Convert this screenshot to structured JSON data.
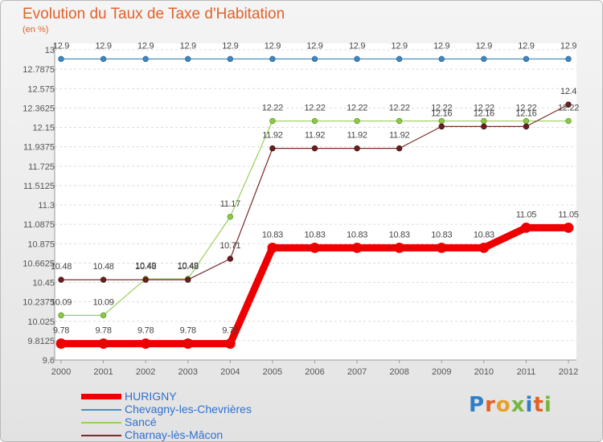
{
  "header": {
    "title": "Evolution du Taux de Taxe d'Habitation",
    "subtitle": "(en %)"
  },
  "logo": {
    "text": "Proxiti",
    "letters": [
      "P",
      "r",
      "o",
      "x",
      "i",
      "t",
      "i"
    ],
    "colors": [
      "#2f7fc8",
      "#e0622b",
      "#e7a12a",
      "#7ab540",
      "#2f7fc8",
      "#e0622b",
      "#7ab540"
    ]
  },
  "chart_data": {
    "type": "line",
    "title": "Evolution du Taux de Taxe d'Habitation",
    "ylabel": "(en %)",
    "x": [
      "2000",
      "2001",
      "2002",
      "2003",
      "2004",
      "2005",
      "2006",
      "2007",
      "2008",
      "2009",
      "2010",
      "2011",
      "2012"
    ],
    "ylim": [
      9.6,
      13
    ],
    "y_ticks": [
      "13",
      "12.7875",
      "12.575",
      "12.3625",
      "12.15",
      "11.9375",
      "11.725",
      "11.5125",
      "11.3",
      "11.0875",
      "10.875",
      "10.6625",
      "10.45",
      "10.2375",
      "10.025",
      "9.8125",
      "9.6"
    ],
    "grid": "horizontal-dashed",
    "legend_position": "bottom-left",
    "series": [
      {
        "name": "Chevagny-les-Chevrières",
        "color": "#4a8fc2",
        "values": [
          12.9,
          12.9,
          12.9,
          12.9,
          12.9,
          12.9,
          12.9,
          12.9,
          12.9,
          12.9,
          12.9,
          12.9,
          12.9
        ],
        "labels": [
          "12.9",
          "12.9",
          "12.9",
          "12.9",
          "12.9",
          "12.9",
          "12.9",
          "12.9",
          "12.9",
          "12.9",
          "12.9",
          "12.9",
          "12.9"
        ]
      },
      {
        "name": "Sancé",
        "color": "#97d05a",
        "values": [
          10.09,
          10.09,
          10.49,
          10.49,
          11.17,
          12.22,
          12.22,
          12.22,
          12.22,
          12.22,
          12.22,
          12.22,
          12.22
        ],
        "labels": [
          "10.09",
          "10.09",
          "10.49",
          "10.49",
          "11.17",
          "12.22",
          "12.22",
          "12.22",
          "12.22",
          "12.22",
          "12.22",
          "12.22",
          "12.22"
        ]
      },
      {
        "name": "Charnay-lès-Mâcon",
        "color": "#7a2a2a",
        "values": [
          10.48,
          10.48,
          10.48,
          10.48,
          10.71,
          11.92,
          11.92,
          11.92,
          11.92,
          12.16,
          12.16,
          12.16,
          12.4
        ],
        "labels": [
          "10.48",
          "10.48",
          "10.48",
          "10.48",
          "10.71",
          "11.92",
          "11.92",
          "11.92",
          "11.92",
          "12.16",
          "12.16",
          "12.16",
          "12.4"
        ]
      },
      {
        "name": "HURIGNY",
        "color": "#ee0000",
        "values": [
          9.78,
          9.78,
          9.78,
          9.78,
          9.78,
          10.83,
          10.83,
          10.83,
          10.83,
          10.83,
          10.83,
          11.05,
          11.05
        ],
        "labels": [
          "9.78",
          "9.78",
          "9.78",
          "9.78",
          "9.78",
          "10.83",
          "10.83",
          "10.83",
          "10.83",
          "10.83",
          "10.83",
          "11.05",
          "11.05"
        ]
      }
    ],
    "legend": [
      {
        "name": "HURIGNY",
        "color": "#ee0000",
        "label_color": "#2f6fd0"
      },
      {
        "name": "Chevagny-les-Chevrières",
        "color": "#4a8fc2",
        "label_color": "#2f6fd0"
      },
      {
        "name": "Sancé",
        "color": "#97d05a",
        "label_color": "#2f6fd0"
      },
      {
        "name": "Charnay-lès-Mâcon",
        "color": "#7a2a2a",
        "label_color": "#2f6fd0"
      }
    ]
  }
}
